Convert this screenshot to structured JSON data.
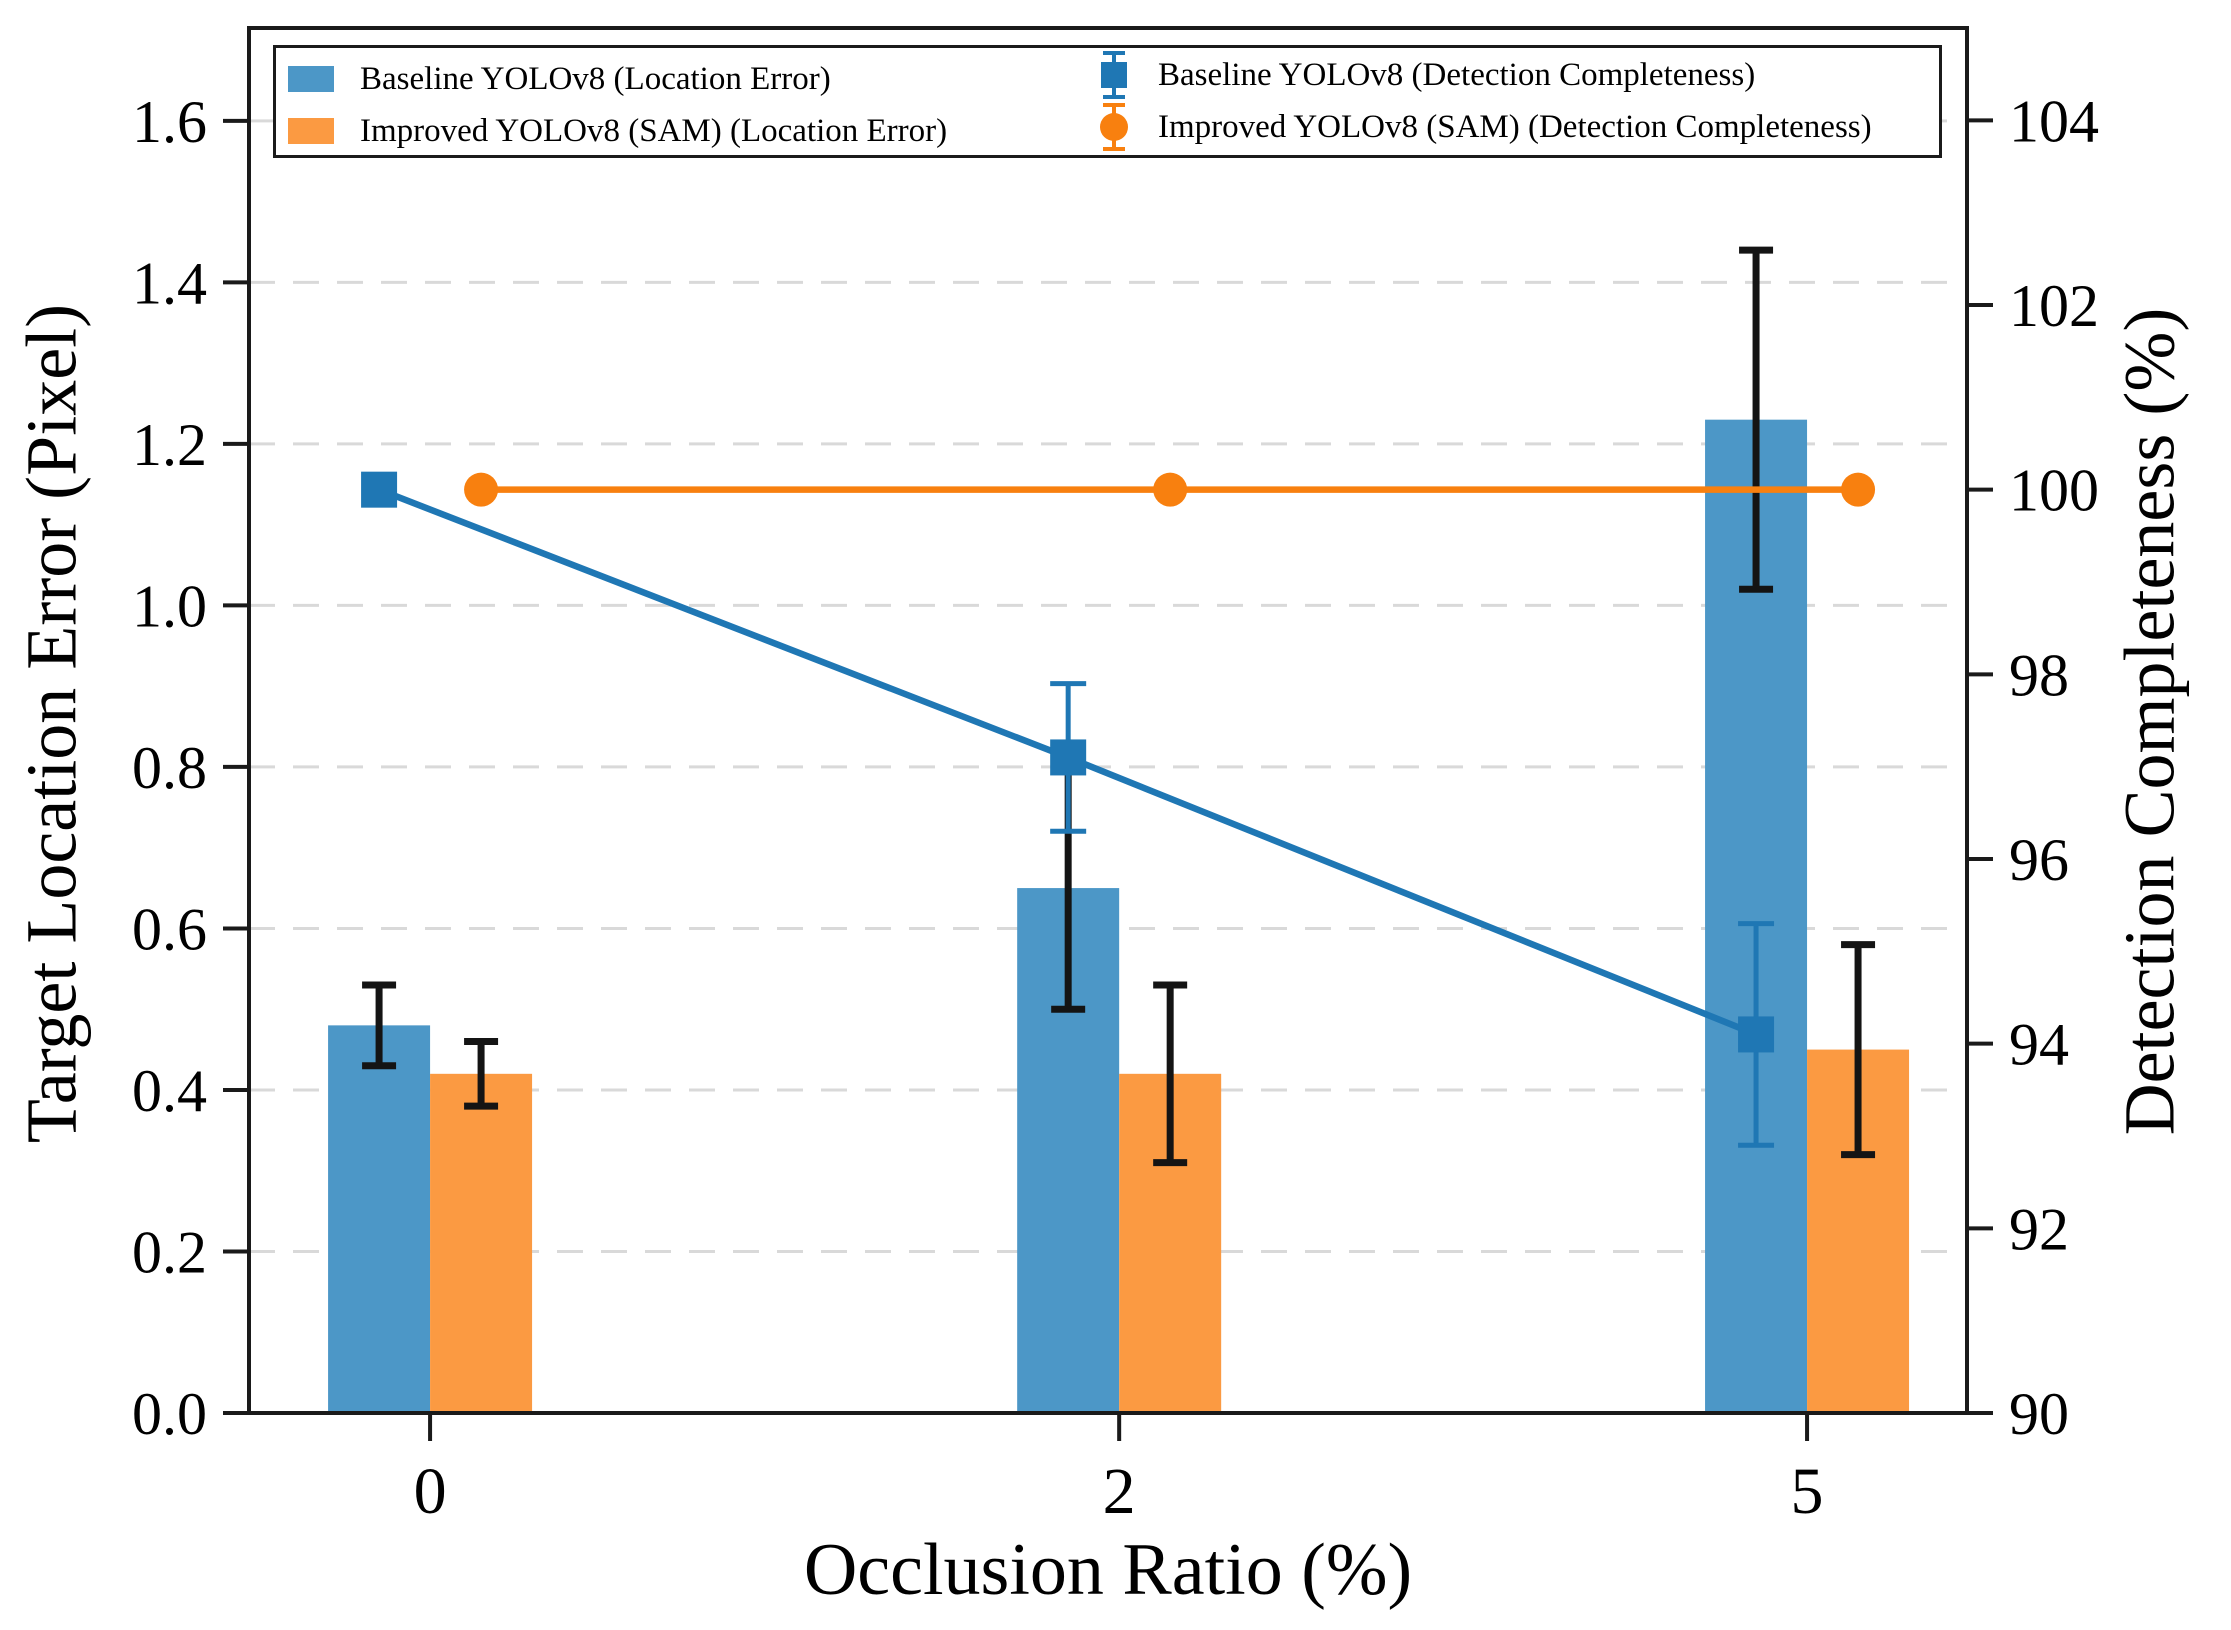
{
  "figure": {
    "background": "#ffffff",
    "spine_color": "#1a1a1a"
  },
  "chart_data": {
    "type": "bar",
    "subtype": "grouped-bars-with-dual-axis-lines",
    "categories": [
      "0",
      "2",
      "5"
    ],
    "xlabel": "Occlusion Ratio (%)",
    "left_axis": {
      "label": "Target Location Error (Pixel)",
      "min": 0,
      "max": 1.715,
      "tick_values": [
        0.0,
        0.2,
        0.4,
        0.6,
        0.8,
        1.0,
        1.2,
        1.4,
        1.6
      ],
      "tick_labels": [
        "0.0",
        "0.2",
        "0.4",
        "0.6",
        "0.8",
        "1.0",
        "1.2",
        "1.4",
        "1.6"
      ]
    },
    "right_axis": {
      "label": "Detection Completeness (%)",
      "min": 90,
      "max": 105,
      "tick_values": [
        90,
        92,
        94,
        96,
        98,
        100,
        102,
        104
      ],
      "tick_labels": [
        "90",
        "92",
        "94",
        "96",
        "98",
        "100",
        "102",
        "104"
      ]
    },
    "grid": {
      "show": true,
      "on_axis": "left",
      "style": "dashed",
      "color": "#d9d9d9"
    },
    "series": [
      {
        "name": "Baseline YOLOv8 (Location Error)",
        "type": "bar",
        "axis": "left",
        "color": "#4C97C7",
        "error_color": "#141414",
        "values": [
          0.48,
          0.65,
          1.23
        ],
        "errors": [
          0.05,
          0.15,
          0.21
        ]
      },
      {
        "name": "Improved YOLOv8 (SAM) (Location Error)",
        "type": "bar",
        "axis": "left",
        "color": "#FB9A42",
        "error_color": "#141414",
        "values": [
          0.42,
          0.42,
          0.45
        ],
        "errors": [
          0.04,
          0.11,
          0.13
        ]
      },
      {
        "name": "Baseline YOLOv8 (Detection Completeness)",
        "type": "line",
        "axis": "right",
        "marker": "square",
        "color": "#1F77B4",
        "error_color": "#1F77B4",
        "values": [
          100.0,
          97.1,
          94.1
        ],
        "errors": [
          0.0,
          0.8,
          1.2
        ]
      },
      {
        "name": "Improved YOLOv8 (SAM) (Detection Completeness)",
        "type": "line",
        "axis": "right",
        "marker": "circle",
        "color": "#F8800F",
        "error_color": "#F8800F",
        "values": [
          100.0,
          100.0,
          100.0
        ],
        "errors": [
          0.0,
          0.0,
          0.0
        ]
      }
    ],
    "legend_position": "upper-left, 2 columns"
  }
}
